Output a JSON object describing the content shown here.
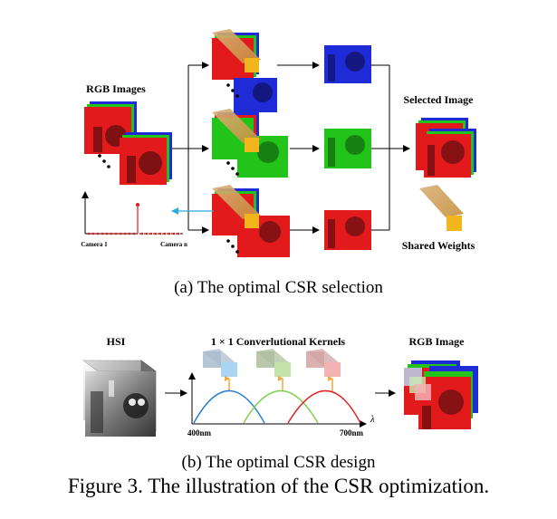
{
  "panel_a": {
    "rgb_images_label": "RGB Images",
    "selected_image_label": "Selected Image",
    "shared_weights_label": "Shared Weights",
    "camera_first_label": "Camera 1",
    "camera_last_label": "Camera n",
    "caption": "(a) The optimal CSR selection"
  },
  "panel_b": {
    "hsi_label": "HSI",
    "kernels_label": "1 × 1 Converlutional Kernels",
    "rgb_image_label": "RGB Image",
    "wavelength_start": "400nm",
    "wavelength_end": "700nm",
    "wavelength_symbol": "λ",
    "caption": "(b) The optimal CSR design"
  },
  "figure_caption": "Figure 3. The illustration of the CSR optimization.",
  "colors": {
    "red": "#e31a1c",
    "green": "#22c41a",
    "blue": "#1f2bd6",
    "gold": "#d9a520",
    "arrow_blue": "#2aa8e0",
    "kernel_blue": "#9ec9ec",
    "kernel_green": "#b9dea0",
    "kernel_red": "#f2a9a9"
  }
}
